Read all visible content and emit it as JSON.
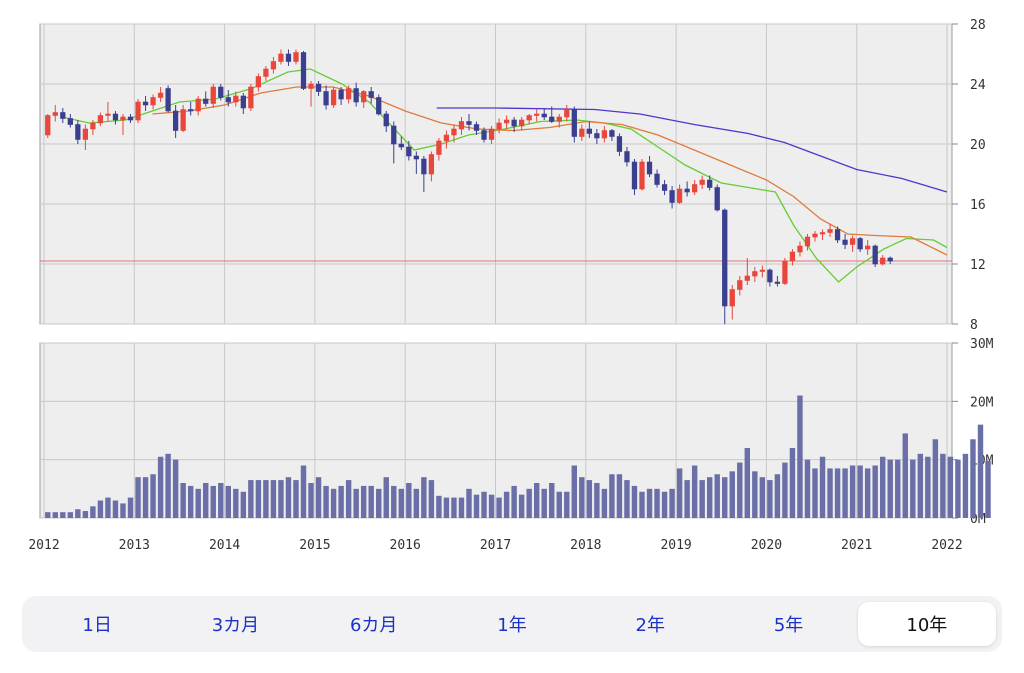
{
  "tabs": [
    {
      "label": "1日",
      "active": false
    },
    {
      "label": "3カ月",
      "active": false
    },
    {
      "label": "6カ月",
      "active": false
    },
    {
      "label": "1年",
      "active": false
    },
    {
      "label": "2年",
      "active": false
    },
    {
      "label": "5年",
      "active": false
    },
    {
      "label": "10年",
      "active": true
    }
  ],
  "colors": {
    "up_candle": "#e8473c",
    "down_candle": "#3a3f8f",
    "ma_short": "#66cc33",
    "ma_mid": "#e07b3a",
    "ma_long": "#5533cc",
    "ref_line": "#e87070",
    "volume_bar": "#6b6fa8",
    "plot_bg": "#eeeeee",
    "grid": "#c8c8c8"
  },
  "chart_data": [
    {
      "type": "candlestick",
      "title": "",
      "ylim": [
        8,
        28
      ],
      "y_ticks": [
        "28",
        "24",
        "20",
        "16",
        "12",
        "8"
      ],
      "x_ticks": [
        "2012",
        "2013",
        "2014",
        "2015",
        "2016",
        "2017",
        "2018",
        "2019",
        "2020",
        "2021",
        "2022"
      ],
      "xlim": [
        2012.0,
        2022.05
      ],
      "reference_line": 12.2,
      "candles_x_start": 2012.0,
      "candles_step": 0.0833,
      "candles": [
        {
          "o": 20.6,
          "h": 22.0,
          "l": 20.4,
          "c": 21.9
        },
        {
          "o": 21.9,
          "h": 22.6,
          "l": 21.5,
          "c": 22.1
        },
        {
          "o": 22.1,
          "h": 22.4,
          "l": 21.4,
          "c": 21.7
        },
        {
          "o": 21.7,
          "h": 22.0,
          "l": 21.1,
          "c": 21.3
        },
        {
          "o": 21.3,
          "h": 21.6,
          "l": 20.0,
          "c": 20.3
        },
        {
          "o": 20.3,
          "h": 21.3,
          "l": 19.6,
          "c": 21.0
        },
        {
          "o": 21.0,
          "h": 21.6,
          "l": 20.6,
          "c": 21.4
        },
        {
          "o": 21.4,
          "h": 22.1,
          "l": 21.2,
          "c": 21.9
        },
        {
          "o": 21.9,
          "h": 22.8,
          "l": 21.5,
          "c": 22.0
        },
        {
          "o": 22.0,
          "h": 22.2,
          "l": 21.3,
          "c": 21.6
        },
        {
          "o": 21.6,
          "h": 22.0,
          "l": 20.6,
          "c": 21.8
        },
        {
          "o": 21.8,
          "h": 22.0,
          "l": 21.4,
          "c": 21.6
        },
        {
          "o": 21.6,
          "h": 23.0,
          "l": 21.4,
          "c": 22.8
        },
        {
          "o": 22.8,
          "h": 23.2,
          "l": 22.2,
          "c": 22.6
        },
        {
          "o": 22.6,
          "h": 23.3,
          "l": 22.3,
          "c": 23.1
        },
        {
          "o": 23.1,
          "h": 23.8,
          "l": 22.8,
          "c": 23.4
        },
        {
          "o": 23.7,
          "h": 23.9,
          "l": 22.1,
          "c": 22.2
        },
        {
          "o": 22.2,
          "h": 22.6,
          "l": 20.4,
          "c": 20.9
        },
        {
          "o": 20.9,
          "h": 22.6,
          "l": 20.8,
          "c": 22.3
        },
        {
          "o": 22.3,
          "h": 22.8,
          "l": 21.9,
          "c": 22.2
        },
        {
          "o": 22.2,
          "h": 23.2,
          "l": 21.9,
          "c": 23.0
        },
        {
          "o": 23.0,
          "h": 23.5,
          "l": 22.5,
          "c": 22.7
        },
        {
          "o": 22.7,
          "h": 24.0,
          "l": 22.4,
          "c": 23.8
        },
        {
          "o": 23.8,
          "h": 24.0,
          "l": 22.9,
          "c": 23.1
        },
        {
          "o": 23.1,
          "h": 23.6,
          "l": 22.5,
          "c": 22.8
        },
        {
          "o": 22.8,
          "h": 23.5,
          "l": 22.5,
          "c": 23.2
        },
        {
          "o": 23.2,
          "h": 23.4,
          "l": 22.0,
          "c": 22.4
        },
        {
          "o": 22.4,
          "h": 24.0,
          "l": 22.2,
          "c": 23.8
        },
        {
          "o": 23.8,
          "h": 24.7,
          "l": 23.5,
          "c": 24.5
        },
        {
          "o": 24.5,
          "h": 25.2,
          "l": 24.2,
          "c": 25.0
        },
        {
          "o": 25.0,
          "h": 25.8,
          "l": 24.7,
          "c": 25.5
        },
        {
          "o": 25.5,
          "h": 26.3,
          "l": 25.3,
          "c": 26.0
        },
        {
          "o": 26.0,
          "h": 26.3,
          "l": 25.2,
          "c": 25.5
        },
        {
          "o": 25.5,
          "h": 26.3,
          "l": 25.3,
          "c": 26.1
        },
        {
          "o": 26.1,
          "h": 26.2,
          "l": 23.6,
          "c": 23.7
        },
        {
          "o": 23.7,
          "h": 24.2,
          "l": 22.5,
          "c": 24.0
        },
        {
          "o": 24.0,
          "h": 24.2,
          "l": 23.2,
          "c": 23.5
        },
        {
          "o": 23.5,
          "h": 23.9,
          "l": 22.3,
          "c": 22.6
        },
        {
          "o": 22.6,
          "h": 23.8,
          "l": 22.4,
          "c": 23.6
        },
        {
          "o": 23.6,
          "h": 23.8,
          "l": 22.6,
          "c": 23.0
        },
        {
          "o": 23.0,
          "h": 23.9,
          "l": 22.7,
          "c": 23.7
        },
        {
          "o": 23.7,
          "h": 24.1,
          "l": 22.5,
          "c": 22.8
        },
        {
          "o": 22.8,
          "h": 23.6,
          "l": 22.4,
          "c": 23.5
        },
        {
          "o": 23.5,
          "h": 23.8,
          "l": 22.7,
          "c": 23.1
        },
        {
          "o": 23.1,
          "h": 23.3,
          "l": 21.9,
          "c": 22.0
        },
        {
          "o": 22.0,
          "h": 22.2,
          "l": 20.8,
          "c": 21.2
        },
        {
          "o": 21.2,
          "h": 21.5,
          "l": 18.7,
          "c": 20.0
        },
        {
          "o": 20.0,
          "h": 20.5,
          "l": 19.6,
          "c": 19.8
        },
        {
          "o": 19.8,
          "h": 20.2,
          "l": 18.9,
          "c": 19.2
        },
        {
          "o": 19.2,
          "h": 19.5,
          "l": 18.0,
          "c": 19.0
        },
        {
          "o": 19.0,
          "h": 19.2,
          "l": 16.8,
          "c": 18.0
        },
        {
          "o": 18.0,
          "h": 19.5,
          "l": 17.5,
          "c": 19.3
        },
        {
          "o": 19.3,
          "h": 20.4,
          "l": 18.9,
          "c": 20.2
        },
        {
          "o": 20.2,
          "h": 20.9,
          "l": 19.7,
          "c": 20.6
        },
        {
          "o": 20.6,
          "h": 21.3,
          "l": 20.1,
          "c": 21.0
        },
        {
          "o": 21.0,
          "h": 21.8,
          "l": 20.6,
          "c": 21.5
        },
        {
          "o": 21.5,
          "h": 22.0,
          "l": 20.9,
          "c": 21.3
        },
        {
          "o": 21.3,
          "h": 21.5,
          "l": 20.6,
          "c": 20.9
        },
        {
          "o": 20.9,
          "h": 21.1,
          "l": 20.1,
          "c": 20.3
        },
        {
          "o": 20.3,
          "h": 21.2,
          "l": 20.0,
          "c": 21.0
        },
        {
          "o": 21.0,
          "h": 21.7,
          "l": 20.7,
          "c": 21.4
        },
        {
          "o": 21.4,
          "h": 21.9,
          "l": 21.0,
          "c": 21.6
        },
        {
          "o": 21.6,
          "h": 21.8,
          "l": 20.8,
          "c": 21.2
        },
        {
          "o": 21.2,
          "h": 21.8,
          "l": 20.9,
          "c": 21.6
        },
        {
          "o": 21.6,
          "h": 22.0,
          "l": 21.3,
          "c": 21.9
        },
        {
          "o": 21.9,
          "h": 22.3,
          "l": 21.5,
          "c": 22.0
        },
        {
          "o": 22.0,
          "h": 22.4,
          "l": 21.6,
          "c": 21.8
        },
        {
          "o": 21.8,
          "h": 22.5,
          "l": 21.4,
          "c": 21.5
        },
        {
          "o": 21.5,
          "h": 22.0,
          "l": 21.1,
          "c": 21.8
        },
        {
          "o": 21.8,
          "h": 22.6,
          "l": 21.5,
          "c": 22.3
        },
        {
          "o": 22.3,
          "h": 22.5,
          "l": 20.1,
          "c": 20.5
        },
        {
          "o": 20.5,
          "h": 21.3,
          "l": 20.2,
          "c": 21.0
        },
        {
          "o": 21.0,
          "h": 21.5,
          "l": 20.4,
          "c": 20.7
        },
        {
          "o": 20.7,
          "h": 21.0,
          "l": 20.0,
          "c": 20.4
        },
        {
          "o": 20.4,
          "h": 21.2,
          "l": 20.1,
          "c": 20.9
        },
        {
          "o": 20.9,
          "h": 21.0,
          "l": 20.2,
          "c": 20.5
        },
        {
          "o": 20.5,
          "h": 20.7,
          "l": 19.2,
          "c": 19.5
        },
        {
          "o": 19.5,
          "h": 19.8,
          "l": 18.5,
          "c": 18.8
        },
        {
          "o": 18.8,
          "h": 19.0,
          "l": 16.6,
          "c": 17.0
        },
        {
          "o": 17.0,
          "h": 19.0,
          "l": 16.9,
          "c": 18.8
        },
        {
          "o": 18.8,
          "h": 19.2,
          "l": 17.8,
          "c": 18.0
        },
        {
          "o": 18.0,
          "h": 18.3,
          "l": 17.1,
          "c": 17.3
        },
        {
          "o": 17.3,
          "h": 17.6,
          "l": 16.6,
          "c": 16.9
        },
        {
          "o": 16.9,
          "h": 17.2,
          "l": 15.7,
          "c": 16.1
        },
        {
          "o": 16.1,
          "h": 17.3,
          "l": 16.0,
          "c": 17.0
        },
        {
          "o": 17.0,
          "h": 17.5,
          "l": 16.5,
          "c": 16.8
        },
        {
          "o": 16.8,
          "h": 17.6,
          "l": 16.6,
          "c": 17.3
        },
        {
          "o": 17.3,
          "h": 17.9,
          "l": 17.0,
          "c": 17.6
        },
        {
          "o": 17.6,
          "h": 17.9,
          "l": 16.9,
          "c": 17.1
        },
        {
          "o": 17.1,
          "h": 17.3,
          "l": 15.5,
          "c": 15.6
        },
        {
          "o": 15.6,
          "h": 15.7,
          "l": 8.0,
          "c": 9.2
        },
        {
          "o": 9.2,
          "h": 10.6,
          "l": 8.3,
          "c": 10.3
        },
        {
          "o": 10.3,
          "h": 11.2,
          "l": 9.9,
          "c": 10.9
        },
        {
          "o": 10.9,
          "h": 12.4,
          "l": 10.6,
          "c": 11.2
        },
        {
          "o": 11.2,
          "h": 11.8,
          "l": 10.8,
          "c": 11.5
        },
        {
          "o": 11.5,
          "h": 11.9,
          "l": 11.1,
          "c": 11.6
        },
        {
          "o": 11.6,
          "h": 11.7,
          "l": 10.5,
          "c": 10.8
        },
        {
          "o": 10.8,
          "h": 11.2,
          "l": 10.5,
          "c": 10.7
        },
        {
          "o": 10.7,
          "h": 12.4,
          "l": 10.6,
          "c": 12.2
        },
        {
          "o": 12.2,
          "h": 13.0,
          "l": 11.9,
          "c": 12.8
        },
        {
          "o": 12.8,
          "h": 13.5,
          "l": 12.5,
          "c": 13.2
        },
        {
          "o": 13.2,
          "h": 14.0,
          "l": 12.9,
          "c": 13.8
        },
        {
          "o": 13.8,
          "h": 14.2,
          "l": 13.5,
          "c": 14.0
        },
        {
          "o": 14.0,
          "h": 14.3,
          "l": 13.6,
          "c": 14.1
        },
        {
          "o": 14.1,
          "h": 14.7,
          "l": 13.8,
          "c": 14.3
        },
        {
          "o": 14.3,
          "h": 14.5,
          "l": 13.4,
          "c": 13.6
        },
        {
          "o": 13.6,
          "h": 14.0,
          "l": 13.0,
          "c": 13.3
        },
        {
          "o": 13.3,
          "h": 13.9,
          "l": 12.8,
          "c": 13.7
        },
        {
          "o": 13.7,
          "h": 13.8,
          "l": 12.8,
          "c": 13.0
        },
        {
          "o": 13.0,
          "h": 13.6,
          "l": 12.6,
          "c": 13.2
        },
        {
          "o": 13.2,
          "h": 13.3,
          "l": 11.8,
          "c": 12.0
        },
        {
          "o": 12.0,
          "h": 12.6,
          "l": 11.9,
          "c": 12.4
        },
        {
          "o": 12.4,
          "h": 12.5,
          "l": 12.0,
          "c": 12.2
        }
      ],
      "series": [
        {
          "points": [
            [
              2012.2,
              21.8
            ],
            [
              2012.5,
              21.4
            ],
            [
              2012.9,
              21.6
            ],
            [
              2013.2,
              22.2
            ],
            [
              2013.5,
              22.8
            ],
            [
              2013.9,
              23.0
            ],
            [
              2014.3,
              23.7
            ],
            [
              2014.7,
              24.8
            ],
            [
              2014.95,
              25.0
            ],
            [
              2015.3,
              24.0
            ],
            [
              2015.6,
              22.8
            ],
            [
              2015.85,
              21.2
            ],
            [
              2016.1,
              19.6
            ],
            [
              2016.4,
              20.0
            ],
            [
              2016.7,
              20.6
            ],
            [
              2017.1,
              21.0
            ],
            [
              2017.5,
              21.5
            ],
            [
              2017.9,
              21.6
            ],
            [
              2018.2,
              21.4
            ],
            [
              2018.5,
              21.0
            ],
            [
              2018.8,
              19.8
            ],
            [
              2019.1,
              18.6
            ],
            [
              2019.5,
              17.4
            ],
            [
              2019.9,
              17.0
            ],
            [
              2020.1,
              16.8
            ],
            [
              2020.3,
              14.6
            ],
            [
              2020.55,
              12.4
            ],
            [
              2020.8,
              10.8
            ],
            [
              2021.0,
              11.8
            ],
            [
              2021.3,
              13.0
            ],
            [
              2021.55,
              13.7
            ],
            [
              2021.85,
              13.6
            ],
            [
              2022.0,
              13.1
            ]
          ]
        },
        {
          "points": [
            [
              2013.2,
              22.0
            ],
            [
              2013.6,
              22.2
            ],
            [
              2014.0,
              22.6
            ],
            [
              2014.4,
              23.4
            ],
            [
              2014.8,
              23.8
            ],
            [
              2015.2,
              23.8
            ],
            [
              2015.6,
              23.2
            ],
            [
              2016.0,
              22.2
            ],
            [
              2016.4,
              21.4
            ],
            [
              2016.8,
              21.0
            ],
            [
              2017.2,
              20.9
            ],
            [
              2017.6,
              21.1
            ],
            [
              2018.0,
              21.5
            ],
            [
              2018.4,
              21.3
            ],
            [
              2018.8,
              20.6
            ],
            [
              2019.2,
              19.6
            ],
            [
              2019.6,
              18.6
            ],
            [
              2020.0,
              17.6
            ],
            [
              2020.3,
              16.5
            ],
            [
              2020.6,
              15.0
            ],
            [
              2020.9,
              14.0
            ],
            [
              2021.2,
              13.9
            ],
            [
              2021.6,
              13.8
            ],
            [
              2022.0,
              12.6
            ]
          ]
        },
        {
          "points": [
            [
              2016.35,
              22.4
            ],
            [
              2017.0,
              22.4
            ],
            [
              2018.1,
              22.3
            ],
            [
              2018.6,
              22.0
            ],
            [
              2019.2,
              21.3
            ],
            [
              2019.8,
              20.7
            ],
            [
              2020.2,
              20.1
            ],
            [
              2020.6,
              19.2
            ],
            [
              2021.0,
              18.3
            ],
            [
              2021.5,
              17.7
            ],
            [
              2022.0,
              16.8
            ]
          ]
        }
      ]
    },
    {
      "type": "bar",
      "title": "",
      "ylim": [
        0,
        30
      ],
      "y_ticks": [
        "30M",
        "20M",
        "10M",
        "0M"
      ],
      "x_start": 2012.0,
      "x_step": 0.0833,
      "values": [
        1,
        1,
        1,
        1,
        1.5,
        1.2,
        2,
        3,
        3.5,
        3,
        2.5,
        3.5,
        7,
        7,
        7.5,
        10.5,
        11,
        10,
        6,
        5.5,
        5,
        6,
        5.5,
        6,
        5.5,
        5,
        4.5,
        6.5,
        6.5,
        6.5,
        6.5,
        6.5,
        7,
        6.5,
        9,
        6,
        7,
        5.5,
        5,
        5.5,
        6.5,
        5,
        5.5,
        5.5,
        5,
        7,
        5.5,
        5,
        6,
        5,
        7,
        6.5,
        3.8,
        3.5,
        3.5,
        3.5,
        5,
        4,
        4.5,
        4,
        3.5,
        4.5,
        5.5,
        4,
        5,
        6,
        5,
        6,
        4.5,
        4.5,
        9,
        7,
        6.5,
        6,
        5,
        7.5,
        7.5,
        6.5,
        5.5,
        4.5,
        5,
        5,
        4.5,
        5,
        8.5,
        6.5,
        9,
        6.5,
        7,
        7.5,
        7,
        8,
        9.5,
        12,
        8,
        7,
        6.5,
        7.5,
        9.5,
        12,
        21,
        10,
        8.5,
        10.5,
        8.5,
        8.5,
        8.5,
        9,
        9,
        8.5,
        9,
        10.5,
        10,
        10,
        14.5,
        10,
        11,
        10.5,
        13.5,
        11,
        10.5,
        10,
        11,
        13.5,
        16,
        9.8
      ]
    }
  ]
}
